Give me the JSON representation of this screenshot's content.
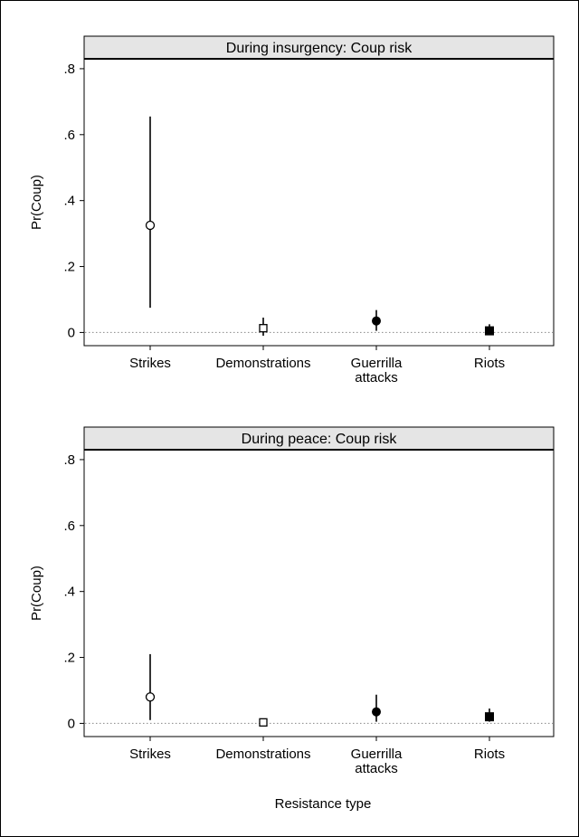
{
  "chart_data": [
    {
      "type": "scatter",
      "title": "During insurgency: Coup risk",
      "ylabel": "Pr(Coup)",
      "xlabel": "",
      "ylim": [
        -0.04,
        0.83
      ],
      "yticks": [
        0,
        0.2,
        0.4,
        0.6,
        0.8
      ],
      "ytick_labels": [
        "0",
        ".2",
        ".4",
        ".6",
        ".8"
      ],
      "reference_line": 0,
      "categories": [
        {
          "label": [
            "Strikes"
          ],
          "estimate": 0.325,
          "ci": [
            0.075,
            0.655
          ],
          "marker": "circle-open"
        },
        {
          "label": [
            "Demonstrations"
          ],
          "estimate": 0.013,
          "ci": [
            -0.01,
            0.045
          ],
          "marker": "square-open"
        },
        {
          "label": [
            "Guerrilla",
            "attacks"
          ],
          "estimate": 0.035,
          "ci": [
            0.005,
            0.068
          ],
          "marker": "circle-filled"
        },
        {
          "label": [
            "Riots"
          ],
          "estimate": 0.005,
          "ci": [
            -0.005,
            0.025
          ],
          "marker": "square-filled"
        }
      ]
    },
    {
      "type": "scatter",
      "title": "During peace: Coup risk",
      "ylabel": "Pr(Coup)",
      "xlabel": "Resistance type",
      "ylim": [
        -0.04,
        0.83
      ],
      "yticks": [
        0,
        0.2,
        0.4,
        0.6,
        0.8
      ],
      "ytick_labels": [
        "0",
        ".2",
        ".4",
        ".6",
        ".8"
      ],
      "reference_line": 0,
      "categories": [
        {
          "label": [
            "Strikes"
          ],
          "estimate": 0.08,
          "ci": [
            0.01,
            0.21
          ],
          "marker": "circle-open"
        },
        {
          "label": [
            "Demonstrations"
          ],
          "estimate": 0.003,
          "ci": [
            -0.002,
            0.008
          ],
          "marker": "square-open"
        },
        {
          "label": [
            "Guerrilla",
            "attacks"
          ],
          "estimate": 0.035,
          "ci": [
            0.005,
            0.087
          ],
          "marker": "circle-filled"
        },
        {
          "label": [
            "Riots"
          ],
          "estimate": 0.02,
          "ci": [
            0.005,
            0.045
          ],
          "marker": "square-filled"
        }
      ]
    }
  ]
}
